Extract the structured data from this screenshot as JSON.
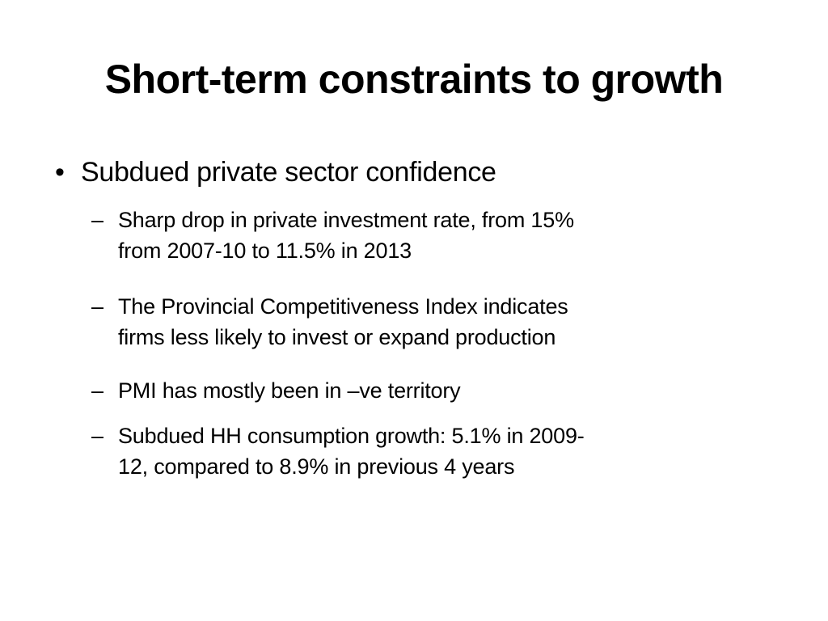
{
  "slide": {
    "title": "Short-term constraints to growth",
    "bullet": {
      "marker": "•",
      "text": "Subdued private sector confidence"
    },
    "sub_marker": "–",
    "sub_bullets": [
      {
        "line1": "Sharp drop in private investment rate, from 15%",
        "line2": "from 2007-10 to 11.5% in 2013"
      },
      {
        "line1": "The Provincial Competitiveness Index indicates",
        "line2": "firms less likely to invest or expand production"
      },
      {
        "line1": "PMI has mostly been in –ve territory",
        "line2": ""
      },
      {
        "line1": "Subdued HH consumption growth: 5.1% in 2009-",
        "line2": "12, compared to 8.9% in previous 4 years"
      }
    ]
  }
}
